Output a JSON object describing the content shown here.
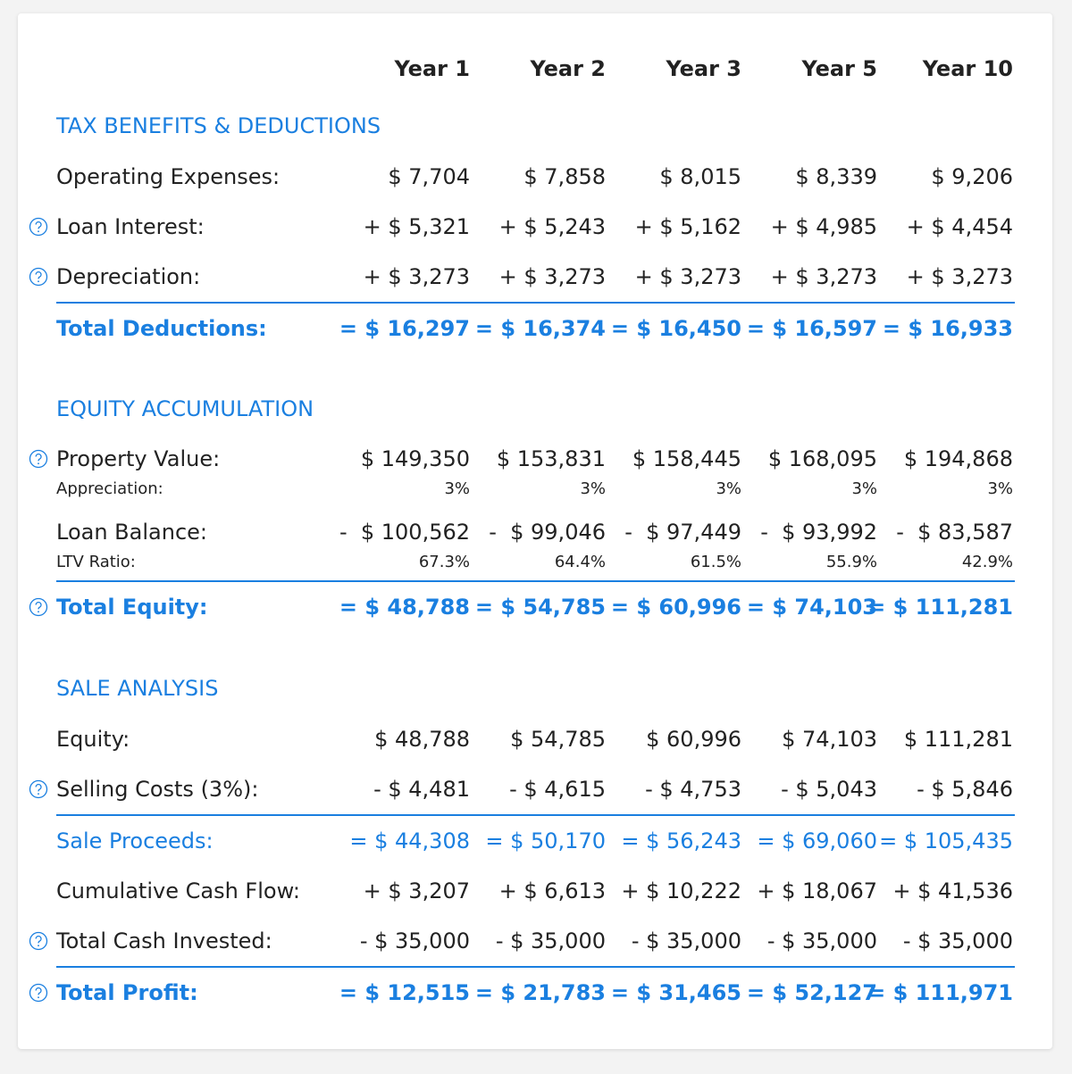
{
  "header": {
    "columns": [
      "Year 1",
      "Year 2",
      "Year 3",
      "Year 5",
      "Year 10"
    ]
  },
  "sections": [
    {
      "title": "TAX BENEFITS & DEDUCTIONS",
      "rows": [
        {
          "label": "Operating Expenses:",
          "values": [
            "$ 7,704",
            "$ 7,858",
            "$ 8,015",
            "$ 8,339",
            "$ 9,206"
          ]
        },
        {
          "label": "Loan Interest:",
          "values": [
            "+ $ 5,321",
            "+ $ 5,243",
            "+ $ 5,162",
            "+ $ 4,985",
            "+ $ 4,454"
          ]
        },
        {
          "label": "Depreciation:",
          "values": [
            "+ $ 3,273",
            "+ $ 3,273",
            "+ $ 3,273",
            "+ $ 3,273",
            "+ $ 3,273"
          ]
        },
        {
          "label": "Total Deductions:",
          "values": [
            "= $ 16,297",
            "= $ 16,374",
            "= $ 16,450",
            "= $ 16,597",
            "= $ 16,933"
          ]
        }
      ]
    },
    {
      "title": "EQUITY ACCUMULATION",
      "rows": [
        {
          "label": "Property Value:",
          "values": [
            "$ 149,350",
            "$ 153,831",
            "$ 158,445",
            "$ 168,095",
            "$ 194,868"
          ]
        },
        {
          "label": "Appreciation:",
          "values": [
            "3%",
            "3%",
            "3%",
            "3%",
            "3%"
          ]
        },
        {
          "label": "Loan Balance:",
          "values": [
            "-  $ 100,562",
            "-  $ 99,046",
            "-  $ 97,449",
            "-  $ 93,992",
            "-  $ 83,587"
          ]
        },
        {
          "label": "LTV Ratio:",
          "values": [
            "67.3%",
            "64.4%",
            "61.5%",
            "55.9%",
            "42.9%"
          ]
        },
        {
          "label": "Total Equity:",
          "values": [
            "= $ 48,788",
            "= $ 54,785",
            "= $ 60,996",
            "= $ 74,103",
            "= $ 111,281"
          ]
        }
      ]
    },
    {
      "title": "SALE ANALYSIS",
      "rows": [
        {
          "label": "Equity:",
          "values": [
            "$ 48,788",
            "$ 54,785",
            "$ 60,996",
            "$ 74,103",
            "$ 111,281"
          ]
        },
        {
          "label": "Selling Costs (3%):",
          "values": [
            "- $ 4,481",
            "- $ 4,615",
            "- $ 4,753",
            "- $ 5,043",
            "- $ 5,846"
          ]
        },
        {
          "label": "Sale Proceeds:",
          "values": [
            "= $ 44,308",
            "= $ 50,170",
            "= $ 56,243",
            "= $ 69,060",
            "= $ 105,435"
          ]
        },
        {
          "label": "Cumulative Cash Flow:",
          "values": [
            "+ $ 3,207",
            "+ $ 6,613",
            "+ $ 10,222",
            "+ $ 18,067",
            "+ $ 41,536"
          ]
        },
        {
          "label": "Total Cash Invested:",
          "values": [
            "- $ 35,000",
            "- $ 35,000",
            "- $ 35,000",
            "- $ 35,000",
            "- $ 35,000"
          ]
        },
        {
          "label": "Total Profit:",
          "values": [
            "= $ 12,515",
            "= $ 21,783",
            "= $ 31,465",
            "= $ 52,127",
            "= $ 111,971"
          ]
        }
      ]
    }
  ]
}
